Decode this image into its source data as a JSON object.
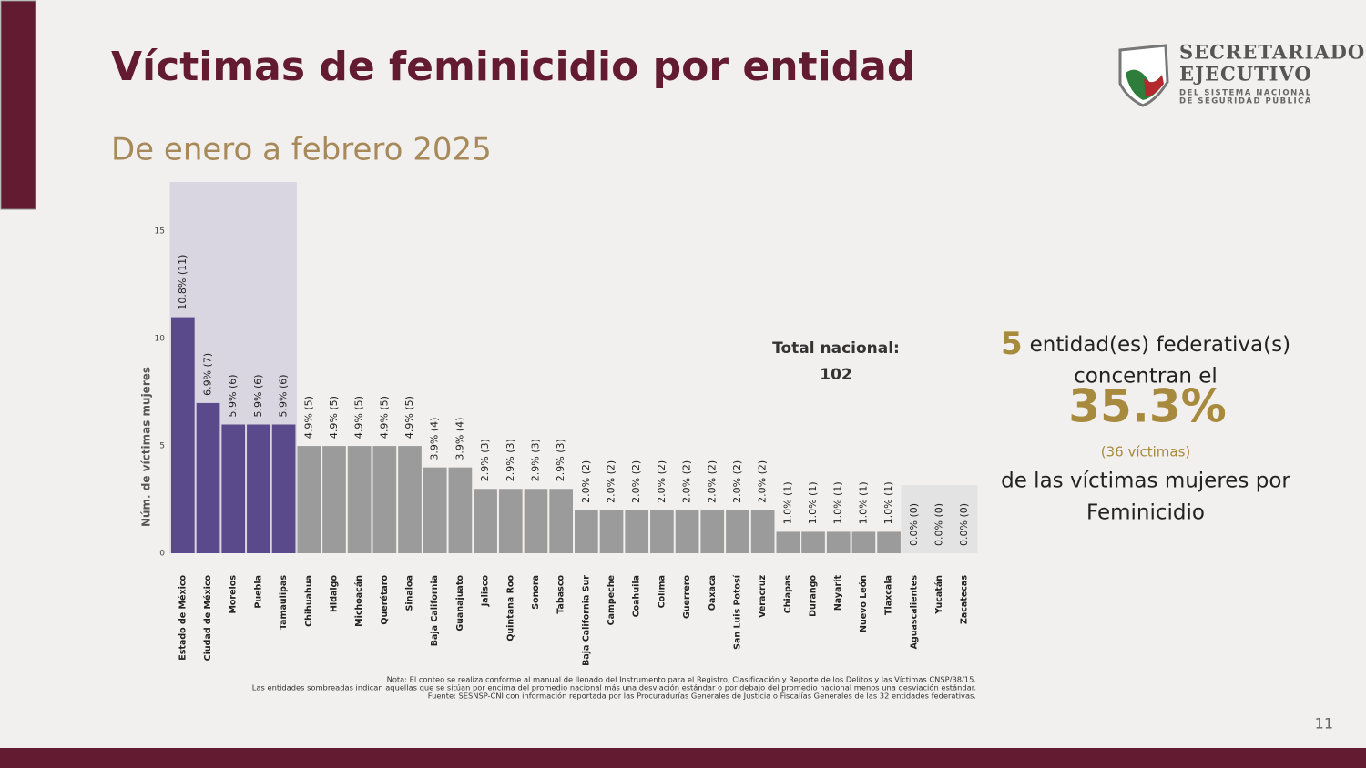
{
  "header": {
    "title": "Víctimas de feminicidio por entidad",
    "subtitle": "De enero a febrero 2025"
  },
  "logo": {
    "line1": "SECRETARIADO",
    "line2": "EJECUTIVO",
    "line3": "DEL SISTEMA NACIONAL",
    "line4": "DE SEGURIDAD PÚBLICA"
  },
  "chart_data": {
    "type": "bar",
    "y_label": "Núm. de víctimas mujeres",
    "categories": [
      "Estado de México",
      "Ciudad de México",
      "Morelos",
      "Puebla",
      "Tamaulipas",
      "Chihuahua",
      "Hidalgo",
      "Michoacán",
      "Querétaro",
      "Sinaloa",
      "Baja California",
      "Guanajuato",
      "Jalisco",
      "Quintana Roo",
      "Sonora",
      "Tabasco",
      "Baja California Sur",
      "Campeche",
      "Coahuila",
      "Colima",
      "Guerrero",
      "Oaxaca",
      "San Luis Potosí",
      "Veracruz",
      "Chiapas",
      "Durango",
      "Nayarit",
      "Nuevo León",
      "Tlaxcala",
      "Aguascalientes",
      "Yucatán",
      "Zacatecas"
    ],
    "values": [
      11,
      7,
      6,
      6,
      6,
      5,
      5,
      5,
      5,
      5,
      4,
      4,
      3,
      3,
      3,
      3,
      2,
      2,
      2,
      2,
      2,
      2,
      2,
      2,
      1,
      1,
      1,
      1,
      1,
      0,
      0,
      0
    ],
    "value_labels": [
      "10.8% (11)",
      "6.9% (7)",
      "5.9% (6)",
      "5.9% (6)",
      "5.9% (6)",
      "4.9% (5)",
      "4.9% (5)",
      "4.9% (5)",
      "4.9% (5)",
      "4.9% (5)",
      "3.9% (4)",
      "3.9% (4)",
      "2.9% (3)",
      "2.9% (3)",
      "2.9% (3)",
      "2.9% (3)",
      "2.0% (2)",
      "2.0% (2)",
      "2.0% (2)",
      "2.0% (2)",
      "2.0% (2)",
      "2.0% (2)",
      "2.0% (2)",
      "2.0% (2)",
      "1.0% (1)",
      "1.0% (1)",
      "1.0% (1)",
      "1.0% (1)",
      "1.0% (1)",
      "0.0% (0)",
      "0.0% (0)",
      "0.0% (0)"
    ],
    "colors": [
      "#5b4a8b",
      "#5b4a8b",
      "#5b4a8b",
      "#5b4a8b",
      "#5b4a8b",
      "#9b9b9b",
      "#9b9b9b",
      "#9b9b9b",
      "#9b9b9b",
      "#9b9b9b",
      "#9b9b9b",
      "#9b9b9b",
      "#9b9b9b",
      "#9b9b9b",
      "#9b9b9b",
      "#9b9b9b",
      "#9b9b9b",
      "#9b9b9b",
      "#9b9b9b",
      "#9b9b9b",
      "#9b9b9b",
      "#9b9b9b",
      "#9b9b9b",
      "#9b9b9b",
      "#9b9b9b",
      "#9b9b9b",
      "#9b9b9b",
      "#9b9b9b",
      "#9b9b9b",
      "#9b9b9b",
      "#9b9b9b",
      "#9b9b9b"
    ],
    "ylim": [
      0,
      17.3
    ],
    "yticks": [
      0,
      5,
      10,
      15
    ],
    "grid": false
  },
  "total": {
    "label": "Total nacional:",
    "value": 102
  },
  "summary": {
    "count": 5,
    "line1": "entidad(es) federativa(s)",
    "line2": "concentran el",
    "percent": "35.3%",
    "victims": "(36 víctimas)",
    "line3": "de las víctimas mujeres por",
    "line4": "Feminicidio"
  },
  "notes": [
    "Nota: El conteo se realiza conforme al manual de llenado del Instrumento para el Registro, Clasificación y Reporte de los Delitos y las Víctimas CNSP/38/15.",
    "Las entidades sombreadas indican aquellas que se sitúan por encima del promedio nacional más una desviación estándar o por debajo del promedio nacional menos una desviación estándar.",
    "Fuente: SESNSP-CNI con información reportada por las Procuradurías Generales de Justicia o Fiscalías Generales de las 32 entidades federativas."
  ],
  "page_number": 11
}
